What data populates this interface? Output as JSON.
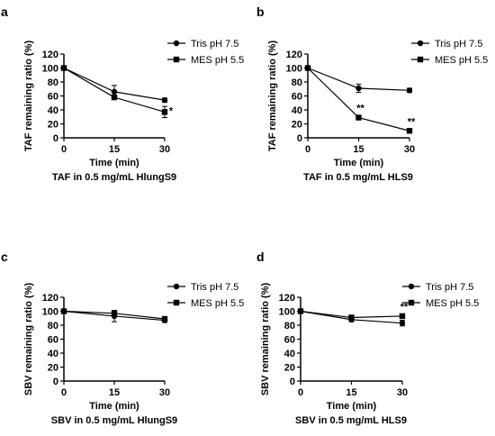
{
  "chart_data": [
    {
      "type": "line",
      "panel": "a",
      "caption": "TAF in 0.5 mg/mL HlungS9",
      "xlabel": "Time (min)",
      "ylabel": "TAF remaining ratio (%)",
      "x": [
        0,
        15,
        30
      ],
      "xticks": [
        "0",
        "15",
        "30"
      ],
      "ylim": [
        0,
        120
      ],
      "yticks": [
        "0",
        "20",
        "40",
        "60",
        "80",
        "100",
        "120"
      ],
      "series": [
        {
          "name": "Tris pH 7.5",
          "marker": "circle",
          "values": [
            100,
            66,
            54
          ],
          "errors": [
            0,
            9,
            3
          ],
          "labels": [
            "",
            "",
            ""
          ]
        },
        {
          "name": "MES pH 5.5",
          "marker": "square",
          "values": [
            100,
            58,
            37
          ],
          "errors": [
            0,
            2,
            8
          ],
          "labels": [
            "",
            "",
            "*"
          ]
        }
      ]
    },
    {
      "type": "line",
      "panel": "b",
      "caption": "TAF in 0.5 mg/mL HLS9",
      "xlabel": "Time (min)",
      "ylabel": "TAF remaining ratio (%)",
      "x": [
        0,
        15,
        30
      ],
      "xticks": [
        "0",
        "15",
        "30"
      ],
      "ylim": [
        0,
        120
      ],
      "yticks": [
        "0",
        "20",
        "40",
        "60",
        "80",
        "100",
        "120"
      ],
      "series": [
        {
          "name": "Tris pH 7.5",
          "marker": "circle",
          "values": [
            100,
            71,
            68
          ],
          "errors": [
            0,
            6,
            3
          ],
          "labels": [
            "",
            "",
            ""
          ]
        },
        {
          "name": "MES pH 5.5",
          "marker": "square",
          "values": [
            100,
            29,
            10
          ],
          "errors": [
            0,
            1,
            1
          ],
          "labels": [
            "",
            "**",
            "**"
          ]
        }
      ]
    },
    {
      "type": "line",
      "panel": "c",
      "caption": "SBV in 0.5 mg/mL HlungS9",
      "xlabel": "Time (min)",
      "ylabel": "SBV remaining ratio (%)",
      "x": [
        0,
        15,
        30
      ],
      "xticks": [
        "0",
        "15",
        "30"
      ],
      "ylim": [
        0,
        120
      ],
      "yticks": [
        "0",
        "20",
        "40",
        "60",
        "80",
        "100",
        "120"
      ],
      "series": [
        {
          "name": "Tris pH 7.5",
          "marker": "circle",
          "values": [
            100,
            93,
            87
          ],
          "errors": [
            0,
            8,
            3
          ],
          "labels": [
            "",
            "",
            ""
          ]
        },
        {
          "name": "MES pH 5.5",
          "marker": "square",
          "values": [
            100,
            97,
            89
          ],
          "errors": [
            0,
            4,
            2
          ],
          "labels": [
            "",
            "",
            ""
          ]
        }
      ]
    },
    {
      "type": "line",
      "panel": "d",
      "caption": "SBV in 0.5 mg/mL HLS9",
      "xlabel": "Time (min)",
      "ylabel": "SBV remaining ratio (%)",
      "x": [
        0,
        15,
        30
      ],
      "xticks": [
        "0",
        "15",
        "30"
      ],
      "ylim": [
        0,
        120
      ],
      "yticks": [
        "0",
        "20",
        "40",
        "60",
        "80",
        "100",
        "120"
      ],
      "series": [
        {
          "name": "Tris pH 7.5",
          "marker": "circle",
          "values": [
            100,
            88,
            83
          ],
          "errors": [
            0,
            3,
            4
          ],
          "labels": [
            "",
            "",
            ""
          ]
        },
        {
          "name": "MES pH 5.5",
          "marker": "square",
          "values": [
            100,
            91,
            93
          ],
          "errors": [
            0,
            3,
            2
          ],
          "labels": [
            "",
            "",
            "**"
          ]
        }
      ]
    }
  ]
}
